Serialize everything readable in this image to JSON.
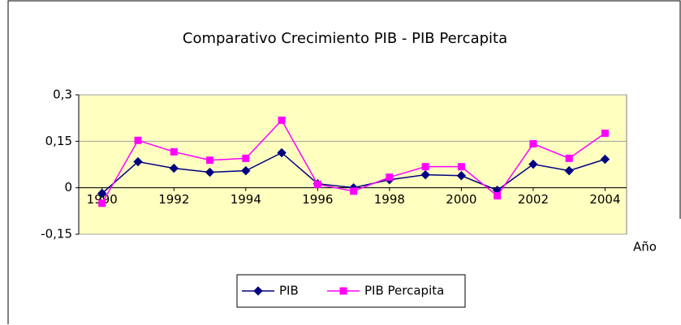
{
  "chart_data": {
    "type": "line",
    "title": "Comparativo Crecimiento PIB - PIB Percapita",
    "x_label": "Año",
    "x": [
      1990,
      1991,
      1992,
      1993,
      1994,
      1995,
      1996,
      1997,
      1998,
      1999,
      2000,
      2001,
      2002,
      2003,
      2004
    ],
    "xlim": [
      1989.35,
      2004.6
    ],
    "xticks": [
      1990,
      1992,
      1994,
      1996,
      1998,
      2000,
      2002,
      2004
    ],
    "ylim": [
      -0.15,
      0.3
    ],
    "yticks": [
      {
        "value": -0.15,
        "label": "-0,15"
      },
      0,
      {
        "value": 0.15,
        "label": "0,15"
      },
      {
        "value": 0.3,
        "label": "0,3"
      }
    ],
    "grid": true,
    "legend": "bottom",
    "series": [
      {
        "name": "PIB",
        "color": "#000080",
        "marker": "diamond",
        "values": [
          -0.018,
          0.084,
          0.063,
          0.05,
          0.055,
          0.113,
          0.013,
          0,
          0.026,
          0.042,
          0.039,
          -0.008,
          0.076,
          0.055,
          0.092
        ]
      },
      {
        "name": "PIB Percapita",
        "color": "#ff00ff",
        "marker": "square",
        "values": [
          -0.05,
          0.153,
          0.116,
          0.089,
          0.095,
          0.218,
          0.011,
          -0.011,
          0.034,
          0.068,
          0.068,
          -0.026,
          0.142,
          0.095,
          0.176
        ]
      }
    ]
  }
}
